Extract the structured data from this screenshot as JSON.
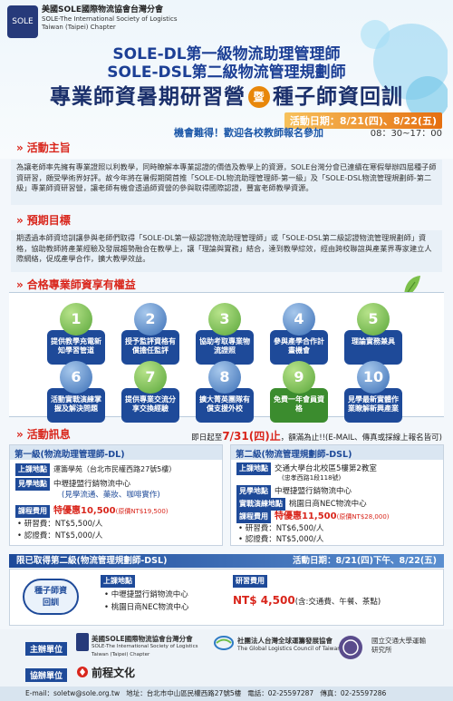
{
  "org": {
    "logo_text": "SOLE",
    "name_zh": "美國SOLE國際物流協會台灣分會",
    "name_en1": "SOLE-The International Society of Logistics",
    "name_en2": "Taiwan (Taipei) Chapter"
  },
  "header": {
    "title1": "SOLE-DL第一級物流助理管理師",
    "title2": "SOLE-DSL第二級物流管理規劃師",
    "title3a": "專業師資暑期研習營",
    "title3_circle": "暨",
    "title3b": "種子師資回訓",
    "date": "活動日期：8/21(四)、8/22(五)",
    "time": "08：30~17：00",
    "welcome": "機會難得！歡迎各校教師報名參加"
  },
  "sections": {
    "purpose_title": "活動主旨",
    "purpose_text": "為讓老師率先擁有專業證照以利教學，同時瞭解本專業認證的價值及教學上的資源，SOLE台灣分會已連續在寒假舉辦四屆種子師資研習，頗受學術界好評。故今年將在暑假期間首推「SOLE-DL物流助理管理師-第一級」及「SOLE-DSL物流管理規劃師-第二級」專業師資研習營，讓老師有機會透過師資營的參與取得國際認證，豐富老師教學資源。",
    "goal_title": "預期目標",
    "goal_text": "期透過本師資培訓讓參與老師們取得「SOLE-DL第一級認證物流助理管理師」或「SOLE-DSL第二級認證物流管理規劃師」資格，協助教師將產業經驗及發展趨勢融合在教學上，讓「理論與實務」結合，達到教學綜效，經由跨校聯誼與產業界專家建立人際網絡，促成產學合作，擴大教學效益。",
    "benefits_title": "合格專業師資享有權益",
    "activity_title": "活動訊息"
  },
  "benefits": [
    {
      "num": "1",
      "label": "提供教學充電新知學習管道"
    },
    {
      "num": "2",
      "label": "授予監評資格有償擔任監評"
    },
    {
      "num": "3",
      "label": "協助考取專業物流證照"
    },
    {
      "num": "4",
      "label": "參與產學合作計畫機會"
    },
    {
      "num": "5",
      "label": "理論實務兼具"
    },
    {
      "num": "6",
      "label": "活動實戰演練掌握及解決問題"
    },
    {
      "num": "7",
      "label": "提供專業交流分享交換經驗"
    },
    {
      "num": "8",
      "label": "擴大菁英團隊有償支援外校"
    },
    {
      "num": "9",
      "label": "免費一年會員資格"
    },
    {
      "num": "10",
      "label": "見學最新實體作業瞭解新興產業"
    }
  ],
  "deadline": {
    "prefix": "即日起至",
    "date": "7/31(四)止",
    "suffix": "，額滿為止!!(E-MAIL、傳真或採線上報名皆可)"
  },
  "level1": {
    "title": "第一級(物流助理管理師-DL)",
    "venue_tag": "上課地點",
    "venue": "運籌學苑（台北市民權西路27號5樓）",
    "visit_tag": "見學地點",
    "visit1": "中壢捷盟行銷物流中心",
    "visit2": "(見學流通、藥妝、咖啡實作)",
    "fee_tag": "課程費用",
    "fee_special": "特優惠10,500",
    "fee_original": "(原價NT$19,500)",
    "fee_item1": "研習費：NT$5,500/人",
    "fee_item2": "認證費：NT$5,000/人"
  },
  "level2": {
    "title": "第二級(物流管理規劃師-DSL)",
    "venue_tag": "上課地點",
    "venue": "交通大學台北校區5樓第2教室",
    "venue_note": "(忠孝西路1段118號)",
    "visit_tag": "見學地點",
    "visit": "中壢捷盟行銷物流中心",
    "practice_tag": "實戰演練地點",
    "practice": "桃園日商NEC物流中心",
    "fee_tag": "課程費用",
    "fee_special": "特優惠11,500",
    "fee_original": "(原價NT$28,000)",
    "fee_item1": "研習費：NT$6,500/人",
    "fee_item2": "認證費：NT$5,000/人"
  },
  "retrain": {
    "title": "限已取得第二級(物流管理規劃師-DSL)",
    "date": "活動日期：8/21(四)下午、8/22(五)",
    "badge": "種子師資回訓",
    "venue_tag": "上課地點",
    "venue1": "中壢捷盟行銷物流中心",
    "venue2": "桃園日商NEC物流中心",
    "fee_tag": "研習費用",
    "fee": "NT$ 4,500",
    "fee_note": "(含:交通費、午餐、茶點)"
  },
  "sponsors": {
    "host_label": "主辦單位",
    "host1_zh": "美國SOLE國際物流協會台灣分會",
    "host1_en": "SOLE-The International Society of Logistics Taiwan (Taipei) Chapter",
    "host2_zh": "社團法人台灣全球運籌發展協會",
    "host2_en": "The Global Logistics Council of Taiwan",
    "host3": "國立交通大學運輸研究所",
    "coop_label": "協辦單位",
    "coop": "前程文化"
  },
  "footer": {
    "email": "E-mail：soletw@sole.org.tw",
    "address": "地址：台北市中山區民權西路27號5樓",
    "phone": "電話：02-25597287",
    "fax": "傳真：02-25597286"
  },
  "colors": {
    "accent_red": "#d9261c",
    "brand_blue": "#1e4a99",
    "green": "#3b8c2e",
    "orange": "#e8870a"
  }
}
